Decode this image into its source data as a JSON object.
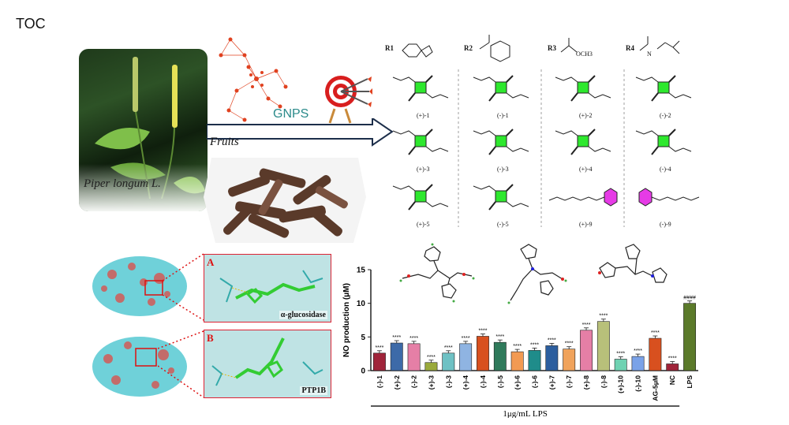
{
  "toc_label": "TOC",
  "plant_caption": "Piper  longum L.",
  "fruits_label": "Fruits",
  "gnps_label": "GNPS",
  "substituents": [
    {
      "label": "R1"
    },
    {
      "label": "R2"
    },
    {
      "label": "R3",
      "formula": "OCH3"
    },
    {
      "label": "R4",
      "formula": "N"
    }
  ],
  "compounds": [
    "(+)-1",
    "(-)-1",
    "(+)-2",
    "(-)-2",
    "(+)-3",
    "(-)-3",
    "(+)-4",
    "(-)-4",
    "(+)-5",
    "(-)-5",
    "(+)-9",
    "(-)-9"
  ],
  "docking": {
    "a_tag": "A",
    "a_caption": "α-glucosidase",
    "b_tag": "B",
    "b_caption": "PTP1B"
  },
  "colors": {
    "bar_outline": "#222",
    "square": "#2ee82e",
    "hexagon": "#e63be6",
    "arrow": "#1c2e4a"
  },
  "chart_data": {
    "type": "bar",
    "ylabel": "NO production (μM)",
    "xlabel": "1μg/mL LPS",
    "ylim": [
      0,
      15
    ],
    "yticks": [
      0,
      5,
      10,
      15
    ],
    "categories": [
      "(-)-1",
      "(+)-2",
      "(-)-2",
      "(+)-3",
      "(-)-3",
      "(+)-4",
      "(-)-4",
      "(-)-5",
      "(+)-6",
      "(-)-6",
      "(+)-7",
      "(-)-7",
      "(+)-8",
      "(-)-8",
      "(+)-10",
      "(-)-10",
      "AG-5μM",
      "NC",
      "LPS"
    ],
    "values": [
      2.6,
      4.1,
      4.0,
      1.2,
      2.6,
      4.0,
      5.1,
      4.2,
      2.8,
      3.0,
      3.7,
      3.2,
      6.0,
      7.3,
      1.7,
      2.1,
      4.8,
      1.0,
      10.0
    ],
    "colors": [
      "#a0243a",
      "#3d6aa8",
      "#e57fa6",
      "#9aaa3c",
      "#6ec1c4",
      "#8fb4e2",
      "#d8501f",
      "#2f7a5b",
      "#f29a52",
      "#1f8c8a",
      "#2c5e9e",
      "#f0a35c",
      "#e57fa6",
      "#b8c07a",
      "#6fd2b2",
      "#7aa2e8",
      "#d8501f",
      "#a0243a",
      "#5b7a2a"
    ],
    "annotations": [
      "****",
      "****",
      "****",
      "****",
      "****",
      "****",
      "****",
      "****",
      "****",
      "****",
      "****",
      "****",
      "****",
      "****",
      "****",
      "****",
      "****",
      "****",
      "####"
    ]
  }
}
